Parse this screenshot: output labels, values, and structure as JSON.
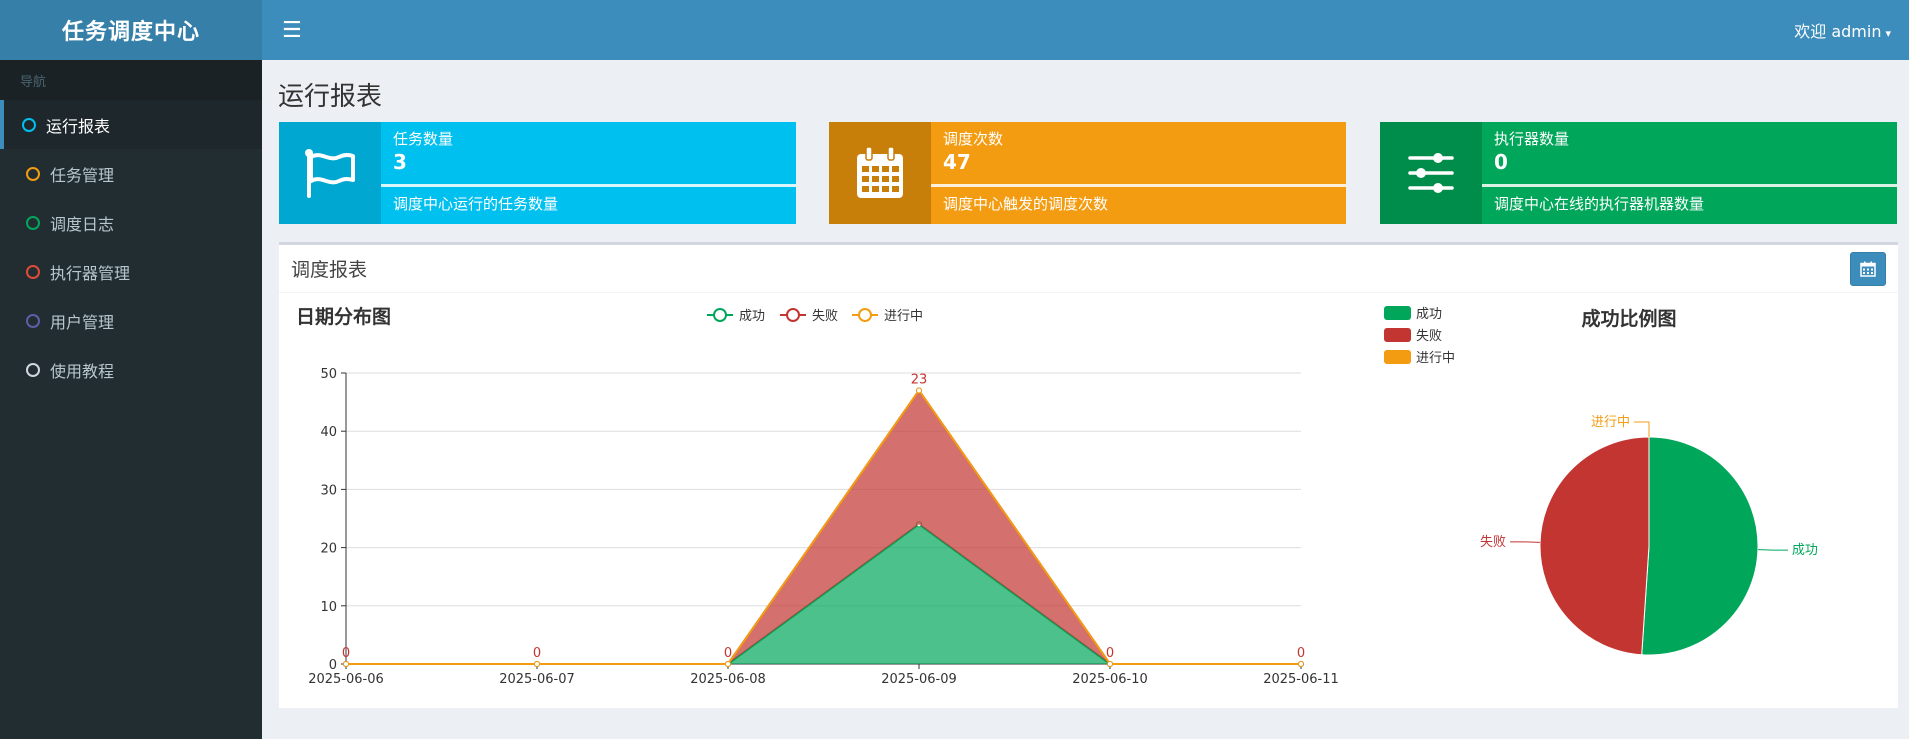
{
  "app": {
    "title": "任务调度中心"
  },
  "sidebar": {
    "header": "导航",
    "items": [
      {
        "label": "运行报表",
        "color": "#00c0ef",
        "active": true
      },
      {
        "label": "任务管理",
        "color": "#f39c12",
        "active": false
      },
      {
        "label": "调度日志",
        "color": "#00a65a",
        "active": false
      },
      {
        "label": "执行器管理",
        "color": "#dd4b39",
        "active": false
      },
      {
        "label": "用户管理",
        "color": "#605ca8",
        "active": false
      },
      {
        "label": "使用教程",
        "color": "#d2d6de",
        "active": false
      }
    ]
  },
  "header": {
    "menu_icon": "hamburger-icon",
    "user_label": "欢迎 admin",
    "caret": "▾"
  },
  "page": {
    "title": "运行报表"
  },
  "stats": [
    {
      "label": "任务数量",
      "value": "3",
      "desc": "调度中心运行的任务数量",
      "icon": "flag-icon",
      "color": "#00c0ef",
      "icon_bg": "#00a7d0"
    },
    {
      "label": "调度次数",
      "value": "47",
      "desc": "调度中心触发的调度次数",
      "icon": "calendar-icon",
      "color": "#f39c12",
      "icon_bg": "#c87f0a"
    },
    {
      "label": "执行器数量",
      "value": "0",
      "desc": "调度中心在线的执行器机器数量",
      "icon": "sliders-icon",
      "color": "#00a65a",
      "icon_bg": "#008d4c"
    }
  ],
  "report": {
    "title": "调度报表",
    "date_button_icon": "calendar-icon"
  },
  "chart_data": [
    {
      "type": "area",
      "title": "日期分布图",
      "legend": [
        "成功",
        "失败",
        "进行中"
      ],
      "x": [
        "2025-06-06",
        "2025-06-07",
        "2025-06-08",
        "2025-06-09",
        "2025-06-10",
        "2025-06-11"
      ],
      "series": [
        {
          "name": "成功",
          "values": [
            0,
            0,
            0,
            24,
            0,
            0
          ],
          "color": "#00a65a"
        },
        {
          "name": "失败",
          "values": [
            0,
            0,
            0,
            23,
            0,
            0
          ],
          "color": "#c23531"
        },
        {
          "name": "进行中",
          "values": [
            0,
            0,
            0,
            0,
            0,
            0
          ],
          "color": "#f39c12"
        }
      ],
      "stacked": true,
      "data_labels": [
        "0",
        "0",
        "0",
        "23",
        "0",
        "0"
      ],
      "yticks": [
        0,
        10,
        20,
        30,
        40,
        50
      ],
      "ylim": [
        0,
        50
      ],
      "grid": true
    },
    {
      "type": "pie",
      "title": "成功比例图",
      "legend": [
        "成功",
        "失败",
        "进行中"
      ],
      "legend_position": "top-left",
      "slices": [
        {
          "name": "成功",
          "value": 24,
          "color": "#00a65a"
        },
        {
          "name": "失败",
          "value": 23,
          "color": "#c23531"
        },
        {
          "name": "进行中",
          "value": 0,
          "color": "#f39c12"
        }
      ]
    }
  ]
}
